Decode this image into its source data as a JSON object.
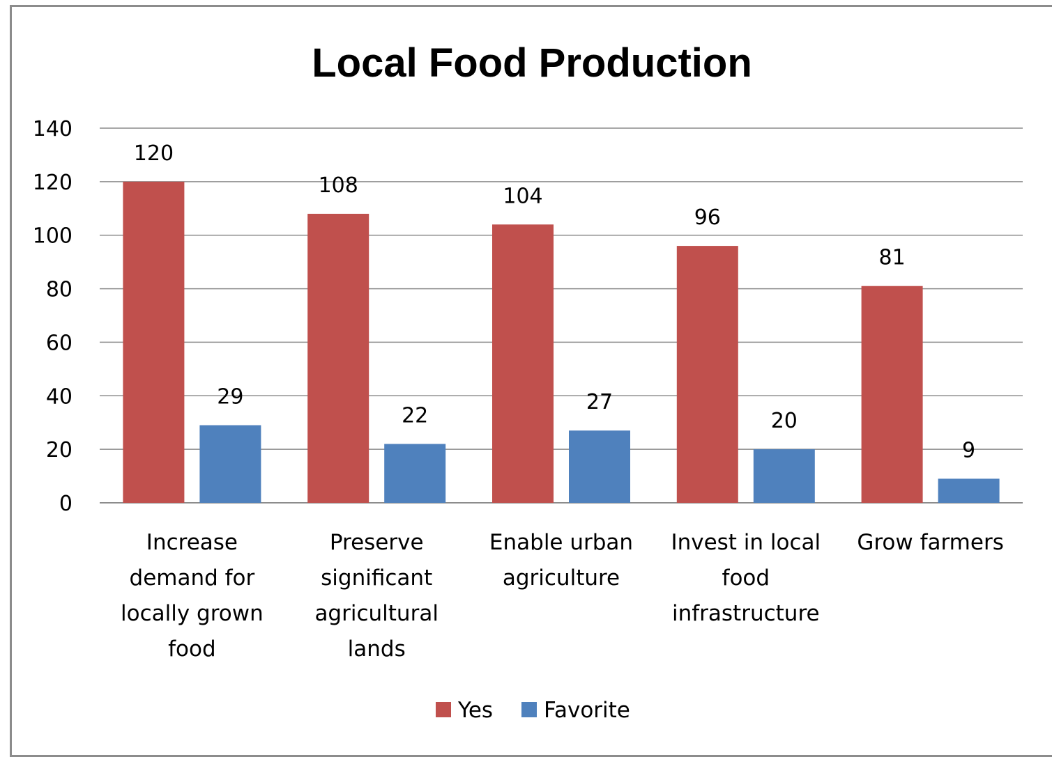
{
  "chart_data": {
    "type": "bar",
    "title": "Local Food Production",
    "categories": [
      [
        "Increase",
        "demand for",
        "locally grown",
        "food"
      ],
      [
        "Preserve",
        "significant",
        "agricultural",
        "lands"
      ],
      [
        "Enable urban",
        "agriculture"
      ],
      [
        "Invest in local",
        "food",
        "infrastructure"
      ],
      [
        "Grow farmers"
      ]
    ],
    "series": [
      {
        "name": "Yes",
        "color": "#C0504D",
        "values": [
          120,
          108,
          104,
          96,
          81
        ]
      },
      {
        "name": "Favorite",
        "color": "#4F81BD",
        "values": [
          29,
          22,
          27,
          20,
          9
        ]
      }
    ],
    "ylim": [
      0,
      140
    ],
    "yticks": [
      0,
      20,
      40,
      60,
      80,
      100,
      120,
      140
    ],
    "grid": true,
    "legend_position": "bottom",
    "data_labels": true
  }
}
